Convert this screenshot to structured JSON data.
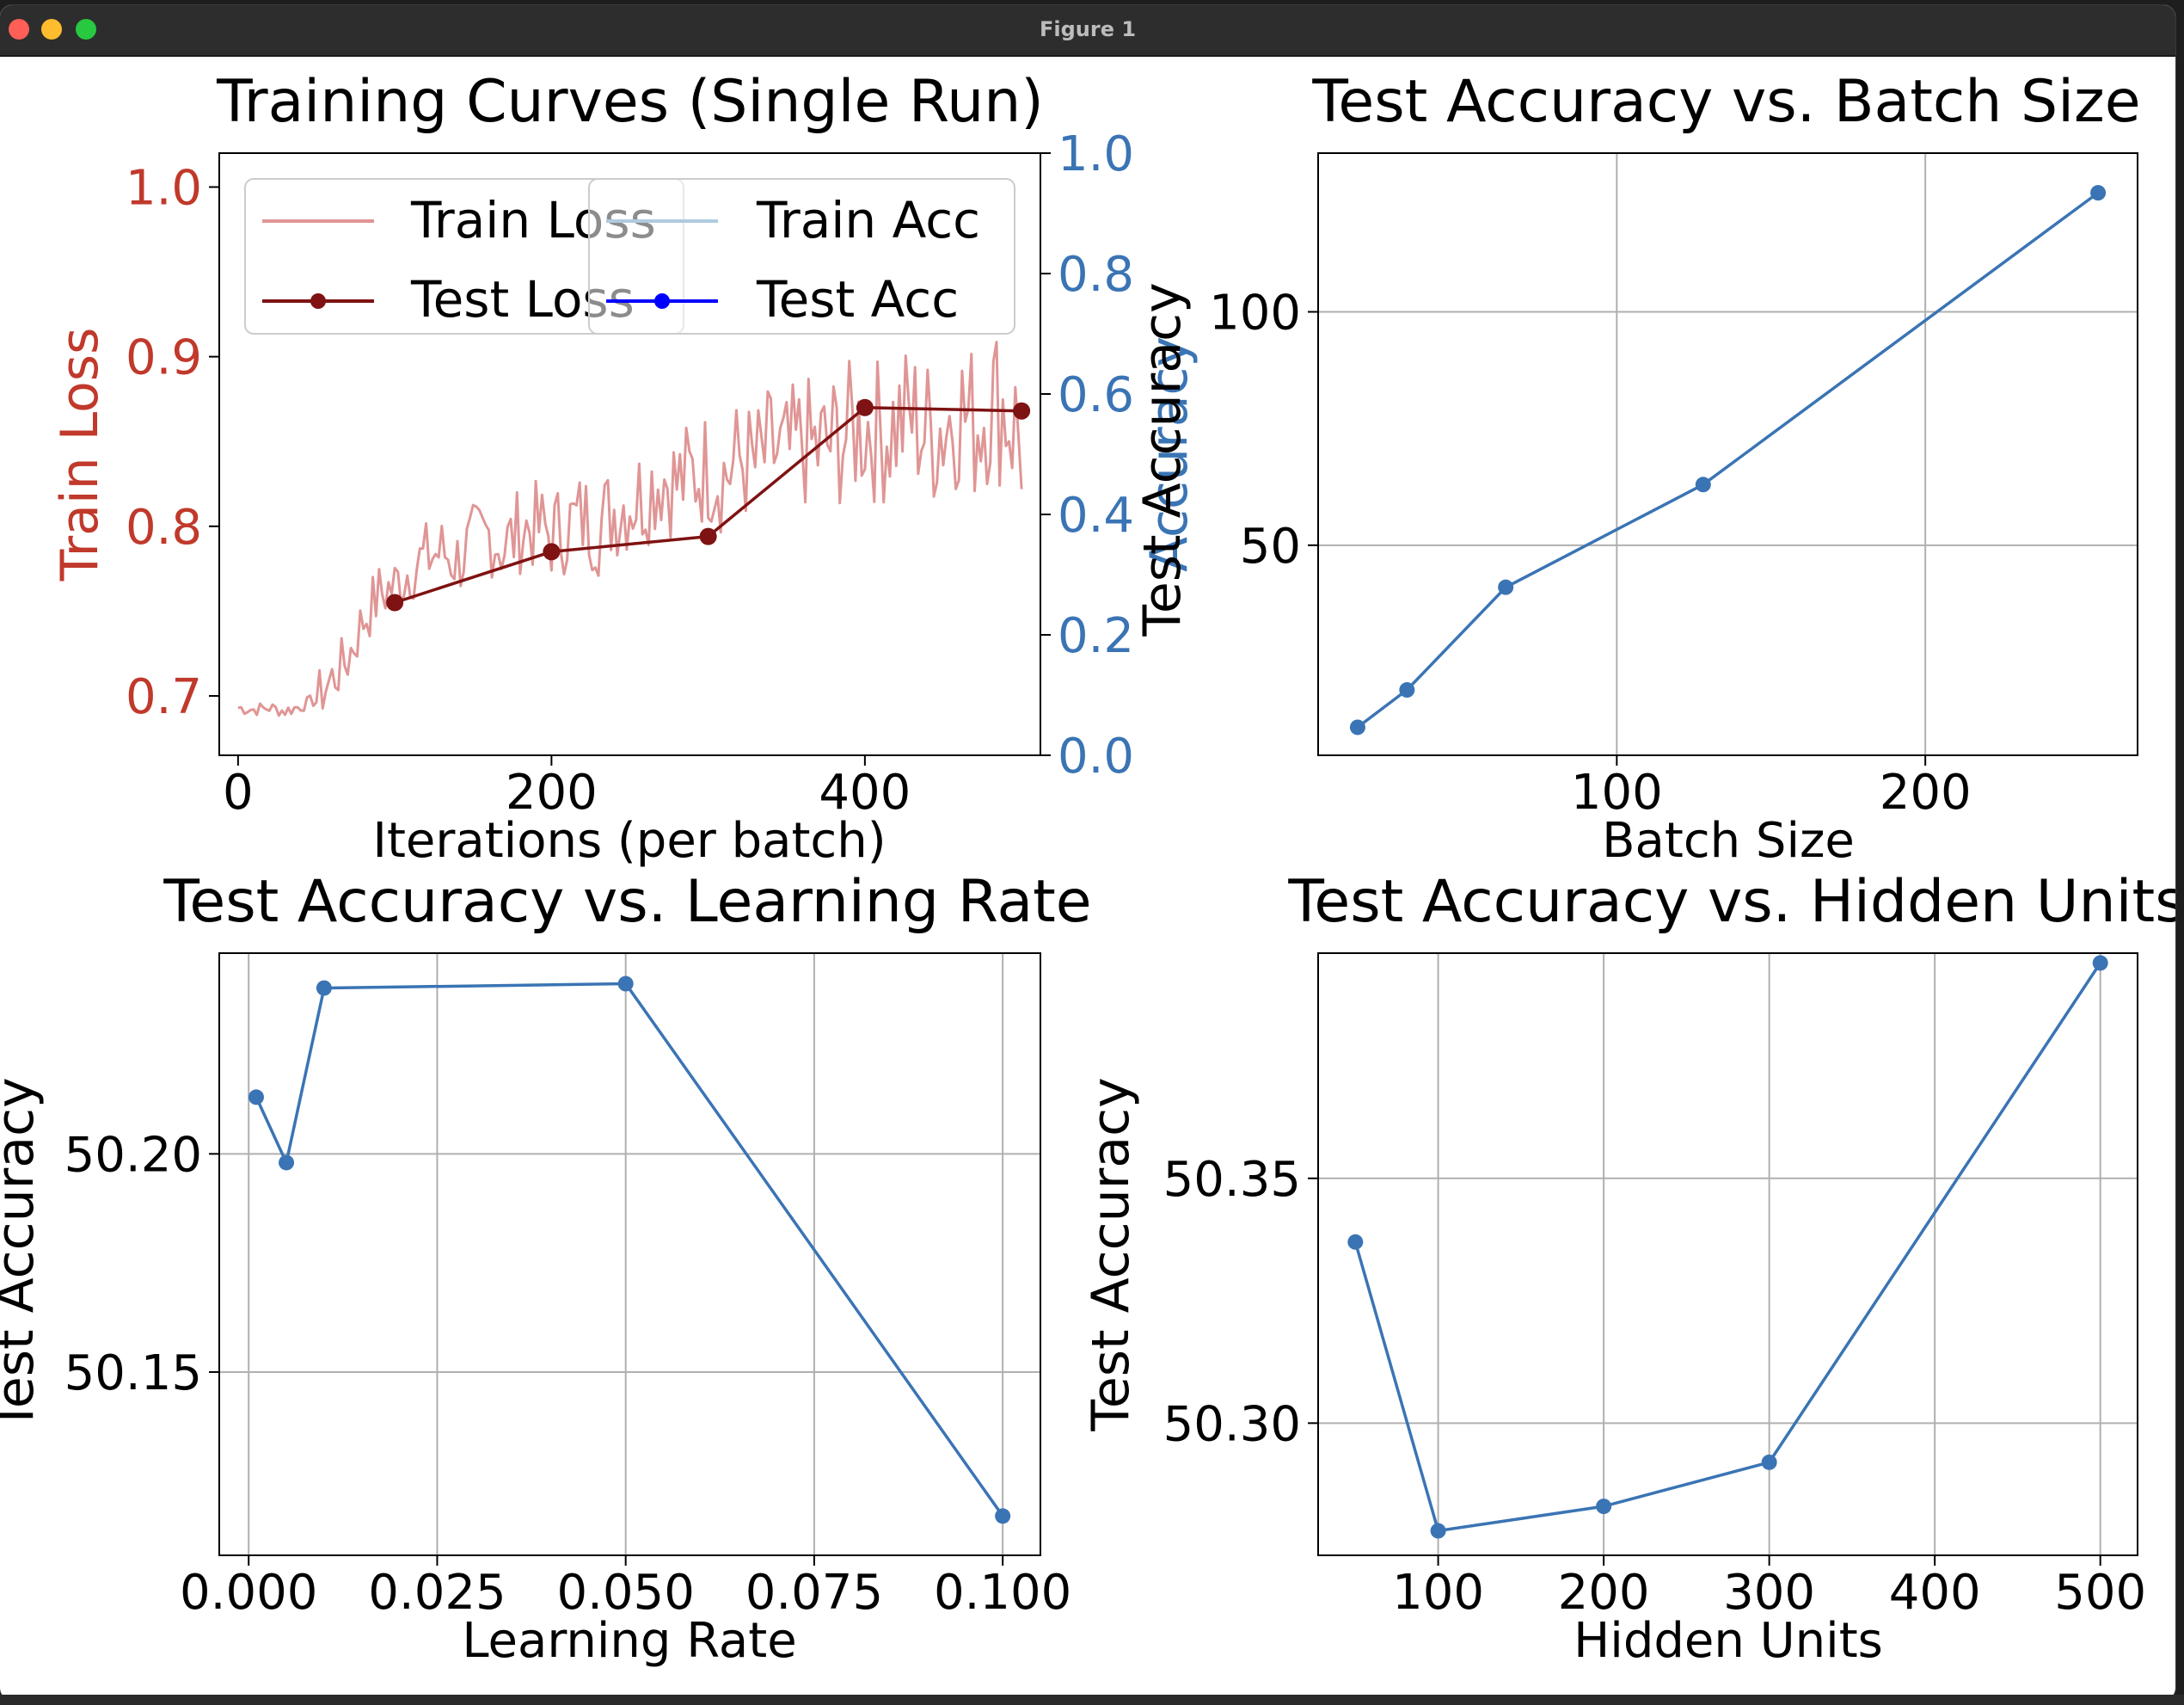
{
  "window": {
    "title": "Figure 1",
    "buttons": {
      "close": "close-button",
      "minimize": "minimize-button",
      "maximize": "maximize-button"
    }
  },
  "colors": {
    "train_loss": "#e09595",
    "test_loss": "#7f1212",
    "train_acc": "#aecbe0",
    "test_acc": "#0000ff",
    "series": "#3a74b4",
    "left_axis_text": "#c0392b",
    "right_axis_text": "#3a74b4"
  },
  "chart_data": [
    {
      "id": "training-curves",
      "type": "line",
      "title": "Training Curves (Single Run)",
      "xlabel": "Iterations (per batch)",
      "ylabel": "Train Loss",
      "ylabel_right": "Accuracy",
      "ylabel_right_overlay": "Test Accuracy",
      "xlim": [
        -12,
        512
      ],
      "ylim": [
        0.665,
        1.02
      ],
      "ylim_right": [
        0.0,
        1.0
      ],
      "xticks": [
        "0",
        "200",
        "400"
      ],
      "yticks": [
        "0.7",
        "0.8",
        "0.9",
        "1.0"
      ],
      "yticks_right": [
        "0.0",
        "0.2",
        "0.4",
        "0.6",
        "0.8",
        "1.0"
      ],
      "grid": false,
      "legend": {
        "position": "top-left",
        "left_entries": [
          "Train Loss",
          "Test Loss"
        ],
        "right_entries": [
          "Train Acc",
          "Test Acc"
        ]
      },
      "series": [
        {
          "name": "Train Loss",
          "axis": "left",
          "marker": "none",
          "description_note": "noisy per-batch loss",
          "x": [
            0,
            10,
            20,
            30,
            40,
            50,
            60,
            70,
            80,
            90,
            100,
            110,
            120,
            130,
            140,
            150,
            160,
            170,
            180,
            190,
            200,
            210,
            220,
            230,
            240,
            250,
            260,
            270,
            280,
            290,
            300,
            310,
            320,
            330,
            340,
            350,
            360,
            370,
            380,
            390,
            400,
            410,
            420,
            430,
            440,
            450,
            460,
            470,
            480,
            490,
            500
          ],
          "values": [
            0.693,
            0.692,
            0.693,
            0.691,
            0.694,
            0.698,
            0.71,
            0.722,
            0.745,
            0.76,
            0.765,
            0.775,
            0.782,
            0.785,
            0.78,
            0.79,
            0.795,
            0.788,
            0.798,
            0.8,
            0.795,
            0.8,
            0.805,
            0.8,
            0.81,
            0.815,
            0.82,
            0.83,
            0.825,
            0.83,
            0.835,
            0.83,
            0.84,
            0.835,
            0.845,
            0.84,
            0.85,
            0.845,
            0.85,
            0.855,
            0.86,
            0.855,
            0.86,
            0.865,
            0.855,
            0.86,
            0.87,
            0.86,
            0.875,
            0.87,
            0.85
          ]
        },
        {
          "name": "Test Loss",
          "axis": "left",
          "marker": "o",
          "x": [
            100,
            200,
            300,
            400,
            500
          ],
          "values": [
            0.755,
            0.785,
            0.794,
            0.87,
            0.868
          ]
        },
        {
          "name": "Train Acc",
          "axis": "right",
          "marker": "none",
          "x": [],
          "values": []
        },
        {
          "name": "Test Acc",
          "axis": "right",
          "marker": "o",
          "x": [],
          "values": []
        }
      ]
    },
    {
      "id": "batch-size",
      "type": "line",
      "title": "Test Accuracy vs. Batch Size",
      "xlabel": "Batch Size",
      "ylabel": "Test Accuracy",
      "xlim": [
        3.2,
        268.8
      ],
      "ylim": [
        5,
        134
      ],
      "xticks": [
        "100",
        "200"
      ],
      "yticks": [
        "50",
        "100"
      ],
      "grid": true,
      "series": [
        {
          "marker": "o",
          "x": [
            16,
            32,
            64,
            128,
            256
          ],
          "values": [
            11,
            19,
            41,
            63,
            125.5
          ]
        }
      ]
    },
    {
      "id": "learning-rate",
      "type": "line",
      "title": "Test Accuracy vs. Learning Rate",
      "xlabel": "Learning Rate",
      "ylabel": "Test Accuracy",
      "xlim": [
        -0.0039,
        0.105
      ],
      "ylim": [
        50.108,
        50.246
      ],
      "xticks": [
        "0.000",
        "0.025",
        "0.050",
        "0.075",
        "0.100"
      ],
      "yticks": [
        "50.15",
        "50.20"
      ],
      "grid": true,
      "series": [
        {
          "marker": "o",
          "x": [
            0.001,
            0.005,
            0.01,
            0.05,
            0.1
          ],
          "values": [
            50.213,
            50.198,
            50.238,
            50.239,
            50.117
          ]
        }
      ]
    },
    {
      "id": "hidden-units",
      "type": "line",
      "title": "Test Accuracy vs. Hidden Units",
      "xlabel": "Hidden Units",
      "ylabel": "Test Accuracy",
      "xlim": [
        27.5,
        522.5
      ],
      "ylim": [
        50.273,
        50.396
      ],
      "xticks": [
        "100",
        "200",
        "300",
        "400",
        "500"
      ],
      "yticks": [
        "50.30",
        "50.35"
      ],
      "grid": true,
      "series": [
        {
          "marker": "o",
          "x": [
            50,
            100,
            200,
            300,
            500
          ],
          "values": [
            50.337,
            50.278,
            50.283,
            50.292,
            50.394
          ]
        }
      ]
    }
  ]
}
